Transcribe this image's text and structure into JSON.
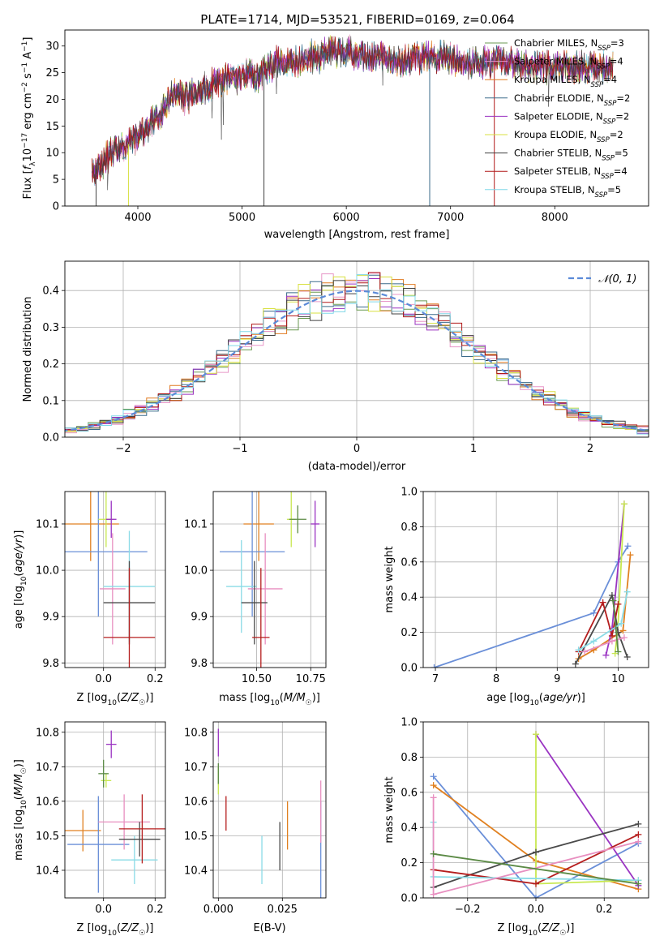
{
  "figure": {
    "title": "PLATE=1714, MJD=53521, FIBERID=0169, z=0.064"
  },
  "colors": {
    "series": [
      "#6a9a50",
      "#e896c8",
      "#e07a20",
      "#3a6a8a",
      "#9a30c0",
      "#d8e040",
      "#404040",
      "#b01818",
      "#80d8e8"
    ],
    "mixed": [
      "#5b8a45",
      "#e88fc0",
      "#e08020",
      "#4a7090",
      "#9a34c2",
      "#c8e850",
      "#4a4a4a",
      "#b51d1d",
      "#8adbe6",
      "#6a8fd8"
    ]
  },
  "chart_data": [
    {
      "id": "spectrum",
      "type": "line",
      "xlabel": "wavelength [Angstrom, rest frame]",
      "ylabel": "Flux [f_λ10^-17 erg cm^-2 s^-1 A^-1]",
      "xlim": [
        3300,
        8900
      ],
      "ylim": [
        0,
        33
      ],
      "xticks": [
        "4000",
        "5000",
        "6000",
        "7000",
        "8000"
      ],
      "xtick_values": [
        4000,
        5000,
        6000,
        7000,
        8000
      ],
      "yticks": [
        "0",
        "5",
        "10",
        "15",
        "20",
        "25",
        "30"
      ],
      "ytick_values": [
        0,
        5,
        10,
        15,
        20,
        25,
        30
      ],
      "legend_placement": "top-right",
      "continuum": {
        "x": [
          3550,
          3650,
          3750,
          3850,
          3950,
          4050,
          4150,
          4250,
          4350,
          4450,
          4550,
          4650,
          4750,
          4850,
          4950,
          5050,
          5150,
          5250,
          5350,
          5450,
          5550,
          5650,
          5750,
          5850,
          5950,
          6050,
          6150,
          6250,
          6350,
          6450,
          6550,
          6650,
          6750,
          6850,
          6950,
          7050,
          7150,
          7250,
          7350,
          7450,
          7550,
          7650,
          7750,
          7850,
          7950,
          8050,
          8150,
          8250,
          8350,
          8450,
          8550
        ],
        "y": [
          6,
          8,
          10,
          11,
          12,
          14,
          16,
          18,
          21,
          20,
          21,
          22,
          23,
          24,
          24,
          25,
          24,
          26,
          27,
          27,
          27,
          28,
          28,
          29,
          29,
          29,
          28,
          28,
          28,
          27,
          27,
          28,
          28,
          28,
          28,
          27,
          27,
          27,
          27,
          27,
          27,
          27,
          26,
          26,
          26,
          26,
          26,
          26,
          26,
          26,
          26
        ]
      },
      "series": [
        {
          "name": "Chabrier MILES, N_SSP=3",
          "legend_main": "Chabrier MILES, N",
          "legend_sub": "SSP",
          "legend_tail": "=3"
        },
        {
          "name": "Salpeter MILES, N_SSP=4",
          "legend_main": "Salpeter MILES, N",
          "legend_sub": "SSP",
          "legend_tail": "=4"
        },
        {
          "name": "Kroupa MILES, N_SSP=4",
          "legend_main": "Kroupa MILES, N",
          "legend_sub": "SSP",
          "legend_tail": "=4"
        },
        {
          "name": "Chabrier ELODIE, N_SSP=2",
          "legend_main": "Chabrier ELODIE, N",
          "legend_sub": "SSP",
          "legend_tail": "=2"
        },
        {
          "name": "Salpeter ELODIE, N_SSP=2",
          "legend_main": "Salpeter ELODIE, N",
          "legend_sub": "SSP",
          "legend_tail": "=2"
        },
        {
          "name": "Kroupa ELODIE, N_SSP=2",
          "legend_main": "Kroupa ELODIE, N",
          "legend_sub": "SSP",
          "legend_tail": "=2"
        },
        {
          "name": "Chabrier STELIB, N_SSP=5",
          "legend_main": "Chabrier STELIB, N",
          "legend_sub": "SSP",
          "legend_tail": "=5"
        },
        {
          "name": "Salpeter STELIB, N_SSP=4",
          "legend_main": "Salpeter STELIB, N",
          "legend_sub": "SSP",
          "legend_tail": "=4"
        },
        {
          "name": "Kroupa STELIB, N_SSP=5",
          "legend_main": "Kroupa STELIB, N",
          "legend_sub": "SSP",
          "legend_tail": "=5"
        }
      ]
    },
    {
      "id": "residuals",
      "type": "line",
      "xlabel": "(data-model)/error",
      "ylabel": "Normed distribution",
      "xlim": [
        -2.5,
        2.5
      ],
      "ylim": [
        0,
        0.48
      ],
      "xticks": [
        "−2",
        "−1",
        "0",
        "1",
        "2"
      ],
      "xtick_values": [
        -2,
        -1,
        0,
        1,
        2
      ],
      "yticks": [
        "0.0",
        "0.1",
        "0.2",
        "0.3",
        "0.4"
      ],
      "ytick_values": [
        0,
        0.1,
        0.2,
        0.3,
        0.4
      ],
      "grid": true,
      "legend_placement": "top-right",
      "reference_series": {
        "name": "𝒩(0, 1)",
        "color": "#5b8ad8",
        "dashed": true
      },
      "bin_width": 0.1,
      "bin_start": -2.5
    },
    {
      "id": "age-vs-Z",
      "type": "scatter",
      "xlabel": "Z [log10(Z/Z☉)]",
      "ylabel": "age  [log10(age/yr)]",
      "xlim": [
        -0.15,
        0.24
      ],
      "ylim": [
        9.79,
        10.17
      ],
      "xticks": [
        "0.0",
        "0.2"
      ],
      "xtick_values": [
        0,
        0.2
      ],
      "yticks": [
        "9.8",
        "9.9",
        "10.0",
        "10.1"
      ],
      "ytick_values": [
        9.8,
        9.9,
        10.0,
        10.1
      ],
      "grid": true,
      "points": [
        {
          "x": -0.05,
          "y": 10.1,
          "xerr": 0.11,
          "yerr": 0.08,
          "c": 2
        },
        {
          "x": -0.02,
          "y": 10.04,
          "xerr": 0.19,
          "yerr": 0.14,
          "c": 9
        },
        {
          "x": 0.01,
          "y": 10.11,
          "xerr": 0.03,
          "yerr": 0.06,
          "c": 5
        },
        {
          "x": 0.03,
          "y": 10.11,
          "xerr": 0.02,
          "yerr": 0.04,
          "c": 4
        },
        {
          "x": 0.035,
          "y": 9.96,
          "xerr": 0.05,
          "yerr": 0.12,
          "c": 1
        },
        {
          "x": 0.1,
          "y": 9.965,
          "xerr": 0.1,
          "yerr": 0.12,
          "c": 8
        },
        {
          "x": 0.1,
          "y": 9.93,
          "xerr": 0.1,
          "yerr": 0.09,
          "c": 6
        },
        {
          "x": 0.1,
          "y": 9.855,
          "xerr": 0.1,
          "yerr": 0.15,
          "c": 7
        }
      ]
    },
    {
      "id": "age-vs-mass",
      "type": "scatter",
      "xlabel": "mass [log10(M/M☉)]",
      "ylabel": "",
      "xlim": [
        10.3,
        10.82
      ],
      "ylim": [
        9.79,
        10.17
      ],
      "xticks": [
        "10.50",
        "10.75"
      ],
      "xtick_values": [
        10.5,
        10.75
      ],
      "yticks": [
        "9.8",
        "9.9",
        "10.0",
        "10.1"
      ],
      "ytick_values": [
        9.8,
        9.9,
        10.0,
        10.1
      ],
      "grid": true,
      "points": [
        {
          "x": 10.51,
          "y": 10.1,
          "xerr": 0.07,
          "yerr": 0.08,
          "c": 2
        },
        {
          "x": 10.48,
          "y": 10.04,
          "xerr": 0.15,
          "yerr": 0.14,
          "c": 9
        },
        {
          "x": 10.66,
          "y": 10.11,
          "xerr": 0.02,
          "yerr": 0.06,
          "c": 5
        },
        {
          "x": 10.69,
          "y": 10.11,
          "xerr": 0.04,
          "yerr": 0.03,
          "c": 0
        },
        {
          "x": 10.77,
          "y": 10.1,
          "xerr": 0.02,
          "yerr": 0.05,
          "c": 4
        },
        {
          "x": 10.54,
          "y": 9.96,
          "xerr": 0.08,
          "yerr": 0.12,
          "c": 1
        },
        {
          "x": 10.43,
          "y": 9.965,
          "xerr": 0.07,
          "yerr": 0.1,
          "c": 8
        },
        {
          "x": 10.49,
          "y": 9.93,
          "xerr": 0.06,
          "yerr": 0.09,
          "c": 6
        },
        {
          "x": 10.52,
          "y": 9.855,
          "xerr": 0.04,
          "yerr": 0.15,
          "c": 7
        }
      ]
    },
    {
      "id": "weight-vs-age",
      "type": "line",
      "xlabel": "age  [log10(age/yr)]",
      "ylabel": "mass weight",
      "xlim": [
        6.8,
        10.5
      ],
      "ylim": [
        0,
        1.0
      ],
      "xticks": [
        "7",
        "8",
        "9",
        "10"
      ],
      "xtick_values": [
        7,
        8,
        9,
        10
      ],
      "yticks": [
        "0.0",
        "0.2",
        "0.4",
        "0.6",
        "0.8",
        "1.0"
      ],
      "ytick_values": [
        0,
        0.2,
        0.4,
        0.6,
        0.8,
        1.0
      ],
      "grid": true,
      "series": [
        {
          "c": 9,
          "x": [
            6.98,
            9.6,
            10.0,
            10.16
          ],
          "y": [
            0.0,
            0.31,
            0.6,
            0.69
          ]
        },
        {
          "c": 2,
          "x": [
            9.35,
            9.6,
            10.08,
            10.2
          ],
          "y": [
            0.05,
            0.1,
            0.21,
            0.64
          ]
        },
        {
          "c": 4,
          "x": [
            9.8,
            9.9,
            10.1
          ],
          "y": [
            0.07,
            0.22,
            0.93
          ]
        },
        {
          "c": 5,
          "x": [
            9.95,
            10.0,
            10.1
          ],
          "y": [
            0.08,
            0.25,
            0.93
          ]
        },
        {
          "c": 6,
          "x": [
            9.3,
            9.9,
            10.0,
            10.15
          ],
          "y": [
            0.02,
            0.41,
            0.2,
            0.06
          ]
        },
        {
          "c": 7,
          "x": [
            9.35,
            9.75,
            9.9,
            10.0
          ],
          "y": [
            0.09,
            0.37,
            0.18,
            0.36
          ]
        },
        {
          "c": 8,
          "x": [
            9.35,
            9.6,
            10.05,
            10.15
          ],
          "y": [
            0.1,
            0.15,
            0.25,
            0.43
          ]
        },
        {
          "c": 1,
          "x": [
            9.45,
            9.9,
            10.1
          ],
          "y": [
            0.09,
            0.15,
            0.17
          ]
        },
        {
          "c": 0,
          "x": [
            9.92,
            10.0
          ],
          "y": [
            0.38,
            0.09
          ]
        }
      ]
    },
    {
      "id": "mass-vs-Z",
      "type": "scatter",
      "xlabel": "Z [log10(Z/Z☉)]",
      "ylabel": "mass [log10(M/M☉)]",
      "xlim": [
        -0.15,
        0.24
      ],
      "ylim": [
        10.32,
        10.83
      ],
      "xticks": [
        "0.0",
        "0.2"
      ],
      "xtick_values": [
        0,
        0.2
      ],
      "yticks": [
        "10.4",
        "10.5",
        "10.6",
        "10.7",
        "10.8"
      ],
      "ytick_values": [
        10.4,
        10.5,
        10.6,
        10.7,
        10.8
      ],
      "grid": true,
      "points": [
        {
          "x": -0.08,
          "y": 10.515,
          "xerr": 0.07,
          "yerr": 0.06,
          "c": 2
        },
        {
          "x": -0.02,
          "y": 10.475,
          "xerr": 0.12,
          "yerr": 0.14,
          "c": 9
        },
        {
          "x": 0.01,
          "y": 10.66,
          "xerr": 0.02,
          "yerr": 0.02,
          "c": 5
        },
        {
          "x": 0.0,
          "y": 10.68,
          "xerr": 0.02,
          "yerr": 0.04,
          "c": 0
        },
        {
          "x": 0.03,
          "y": 10.765,
          "xerr": 0.02,
          "yerr": 0.04,
          "c": 4
        },
        {
          "x": 0.08,
          "y": 10.54,
          "xerr": 0.1,
          "yerr": 0.08,
          "c": 1
        },
        {
          "x": 0.12,
          "y": 10.43,
          "xerr": 0.09,
          "yerr": 0.07,
          "c": 8
        },
        {
          "x": 0.14,
          "y": 10.49,
          "xerr": 0.08,
          "yerr": 0.05,
          "c": 6
        },
        {
          "x": 0.15,
          "y": 10.52,
          "xerr": 0.09,
          "yerr": 0.1,
          "c": 7
        }
      ]
    },
    {
      "id": "mass-vs-ebv",
      "type": "scatter",
      "xlabel": "E(B-V)",
      "ylabel": "",
      "xlim": [
        -0.002,
        0.042
      ],
      "ylim": [
        10.32,
        10.83
      ],
      "xticks": [
        "0.000",
        "0.025"
      ],
      "xtick_values": [
        0,
        0.025
      ],
      "yticks": [
        "10.4",
        "10.5",
        "10.6",
        "10.7",
        "10.8"
      ],
      "ytick_values": [
        10.4,
        10.5,
        10.6,
        10.7,
        10.8
      ],
      "grid": true,
      "points": [
        {
          "x": 0.0,
          "y": 10.77,
          "xerr": 0,
          "yerr": 0.04,
          "c": 4
        },
        {
          "x": 0.0,
          "y": 10.66,
          "xerr": 0,
          "yerr": 0.04,
          "c": 5
        },
        {
          "x": 0.0,
          "y": 10.68,
          "xerr": 0,
          "yerr": 0.03,
          "c": 0
        },
        {
          "x": 0.003,
          "y": 10.565,
          "xerr": 0,
          "yerr": 0.05,
          "c": 7
        },
        {
          "x": 0.017,
          "y": 10.43,
          "xerr": 0,
          "yerr": 0.07,
          "c": 8
        },
        {
          "x": 0.024,
          "y": 10.47,
          "xerr": 0,
          "yerr": 0.07,
          "c": 6
        },
        {
          "x": 0.027,
          "y": 10.53,
          "xerr": 0,
          "yerr": 0.07,
          "c": 2
        },
        {
          "x": 0.04,
          "y": 10.46,
          "xerr": 0,
          "yerr": 0.14,
          "c": 9
        },
        {
          "x": 0.04,
          "y": 10.57,
          "xerr": 0,
          "yerr": 0.09,
          "c": 1
        }
      ]
    },
    {
      "id": "weight-vs-Z",
      "type": "line",
      "xlabel": "Z [log10(Z/Z☉)]",
      "ylabel": "mass weight",
      "xlim": [
        -0.33,
        0.33
      ],
      "ylim": [
        0,
        1.0
      ],
      "xticks": [
        "−0.2",
        "0.0",
        "0.2"
      ],
      "xtick_values": [
        -0.2,
        0,
        0.2
      ],
      "yticks": [
        "0.0",
        "0.2",
        "0.4",
        "0.6",
        "0.8",
        "1.0"
      ],
      "ytick_values": [
        0,
        0.2,
        0.4,
        0.6,
        0.8,
        1.0
      ],
      "grid": true,
      "series": [
        {
          "c": 9,
          "x": [
            -0.3,
            0.0,
            0.3
          ],
          "y": [
            0.69,
            0.0,
            0.31
          ]
        },
        {
          "c": 2,
          "x": [
            -0.3,
            0.0,
            0.3
          ],
          "y": [
            0.64,
            0.21,
            0.05
          ]
        },
        {
          "c": 4,
          "x": [
            0.0,
            0.3
          ],
          "y": [
            0.93,
            0.07
          ]
        },
        {
          "c": 5,
          "x": [
            0.0,
            0.0,
            0.3
          ],
          "y": [
            0.93,
            0.08,
            0.1
          ]
        },
        {
          "c": 6,
          "x": [
            -0.3,
            0.0,
            0.3
          ],
          "y": [
            0.06,
            0.26,
            0.42
          ]
        },
        {
          "c": 7,
          "x": [
            -0.3,
            0.0,
            0.3
          ],
          "y": [
            0.16,
            0.08,
            0.36
          ]
        },
        {
          "c": 8,
          "x": [
            -0.3,
            -0.3,
            0.3
          ],
          "y": [
            0.43,
            0.12,
            0.1
          ]
        },
        {
          "c": 1,
          "x": [
            -0.3,
            -0.3,
            0.3
          ],
          "y": [
            0.57,
            0.02,
            0.32
          ]
        },
        {
          "c": 0,
          "x": [
            -0.3,
            0.3
          ],
          "y": [
            0.25,
            0.08
          ]
        }
      ]
    }
  ]
}
